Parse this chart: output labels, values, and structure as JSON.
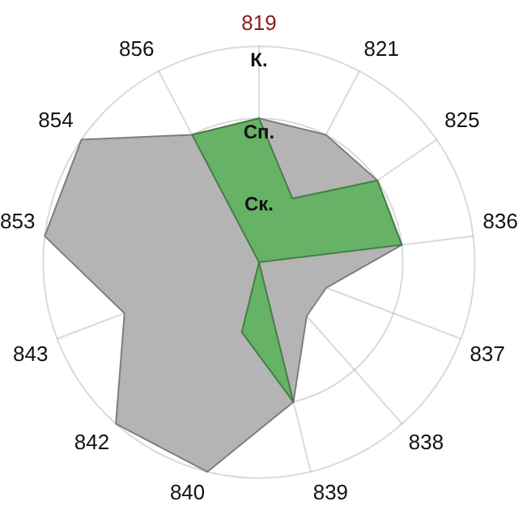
{
  "chart_data": {
    "type": "radar",
    "categories": [
      "819",
      "821",
      "825",
      "836",
      "837",
      "838",
      "839",
      "840",
      "842",
      "843",
      "853",
      "854",
      "856"
    ],
    "series": [
      {
        "color": "#b4b4b4",
        "values": [
          2,
          2,
          2,
          2,
          1,
          1,
          2,
          3,
          3,
          2,
          3,
          3,
          2
        ]
      },
      {
        "color": "#66b266",
        "values": [
          2,
          1,
          2,
          2,
          0,
          0,
          2,
          1,
          0,
          0,
          0,
          0,
          2
        ]
      }
    ],
    "ylim": [
      0,
      3
    ],
    "yticks": [
      {
        "value": 1,
        "label": "Ск."
      },
      {
        "value": 2,
        "label": "Сп."
      },
      {
        "value": 3,
        "label": "К."
      }
    ],
    "grid": true,
    "legend": false
  }
}
